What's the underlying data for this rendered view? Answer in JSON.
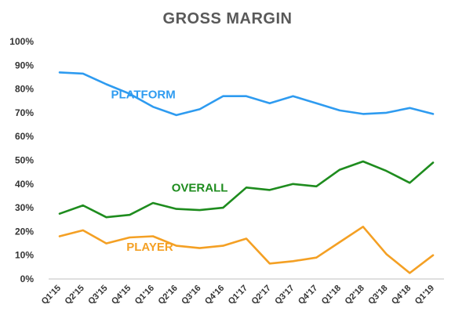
{
  "chart_data": {
    "type": "line",
    "title": "GROSS MARGIN",
    "xlabel": "",
    "ylabel": "",
    "ylim": [
      0,
      100
    ],
    "yticks": [
      "0%",
      "10%",
      "20%",
      "30%",
      "40%",
      "50%",
      "60%",
      "70%",
      "80%",
      "90%",
      "100%"
    ],
    "grid": false,
    "categories": [
      "Q1'15",
      "Q2'15",
      "Q3'15",
      "Q4'15",
      "Q1'16",
      "Q2'16",
      "Q3'16",
      "Q4'16",
      "Q1'17",
      "Q2'17",
      "Q3'17",
      "Q4'17",
      "Q1'18",
      "Q2'18",
      "Q3'18",
      "Q4'18",
      "Q1'19"
    ],
    "series": [
      {
        "name": "PLATFORM",
        "color": "#2E9BF0",
        "label_anchor_index": 2,
        "values": [
          87,
          86.5,
          82,
          78,
          72.5,
          69,
          71.5,
          77,
          77,
          74,
          77,
          74,
          71,
          69.5,
          70,
          72,
          69.5
        ]
      },
      {
        "name": "OVERALL",
        "color": "#1E8C1E",
        "label_anchor_index": 5,
        "values": [
          27.5,
          31,
          26,
          27,
          32,
          29.5,
          29,
          30,
          38.5,
          37.5,
          40,
          39,
          46,
          49.5,
          45.5,
          40.5,
          49
        ]
      },
      {
        "name": "PLAYER",
        "color": "#F4A024",
        "label_anchor_index": 3,
        "values": [
          18,
          20.5,
          15,
          17.5,
          18,
          14,
          13,
          14,
          17,
          6.5,
          7.5,
          9,
          15.5,
          22,
          10.5,
          2.5,
          10
        ]
      }
    ]
  }
}
